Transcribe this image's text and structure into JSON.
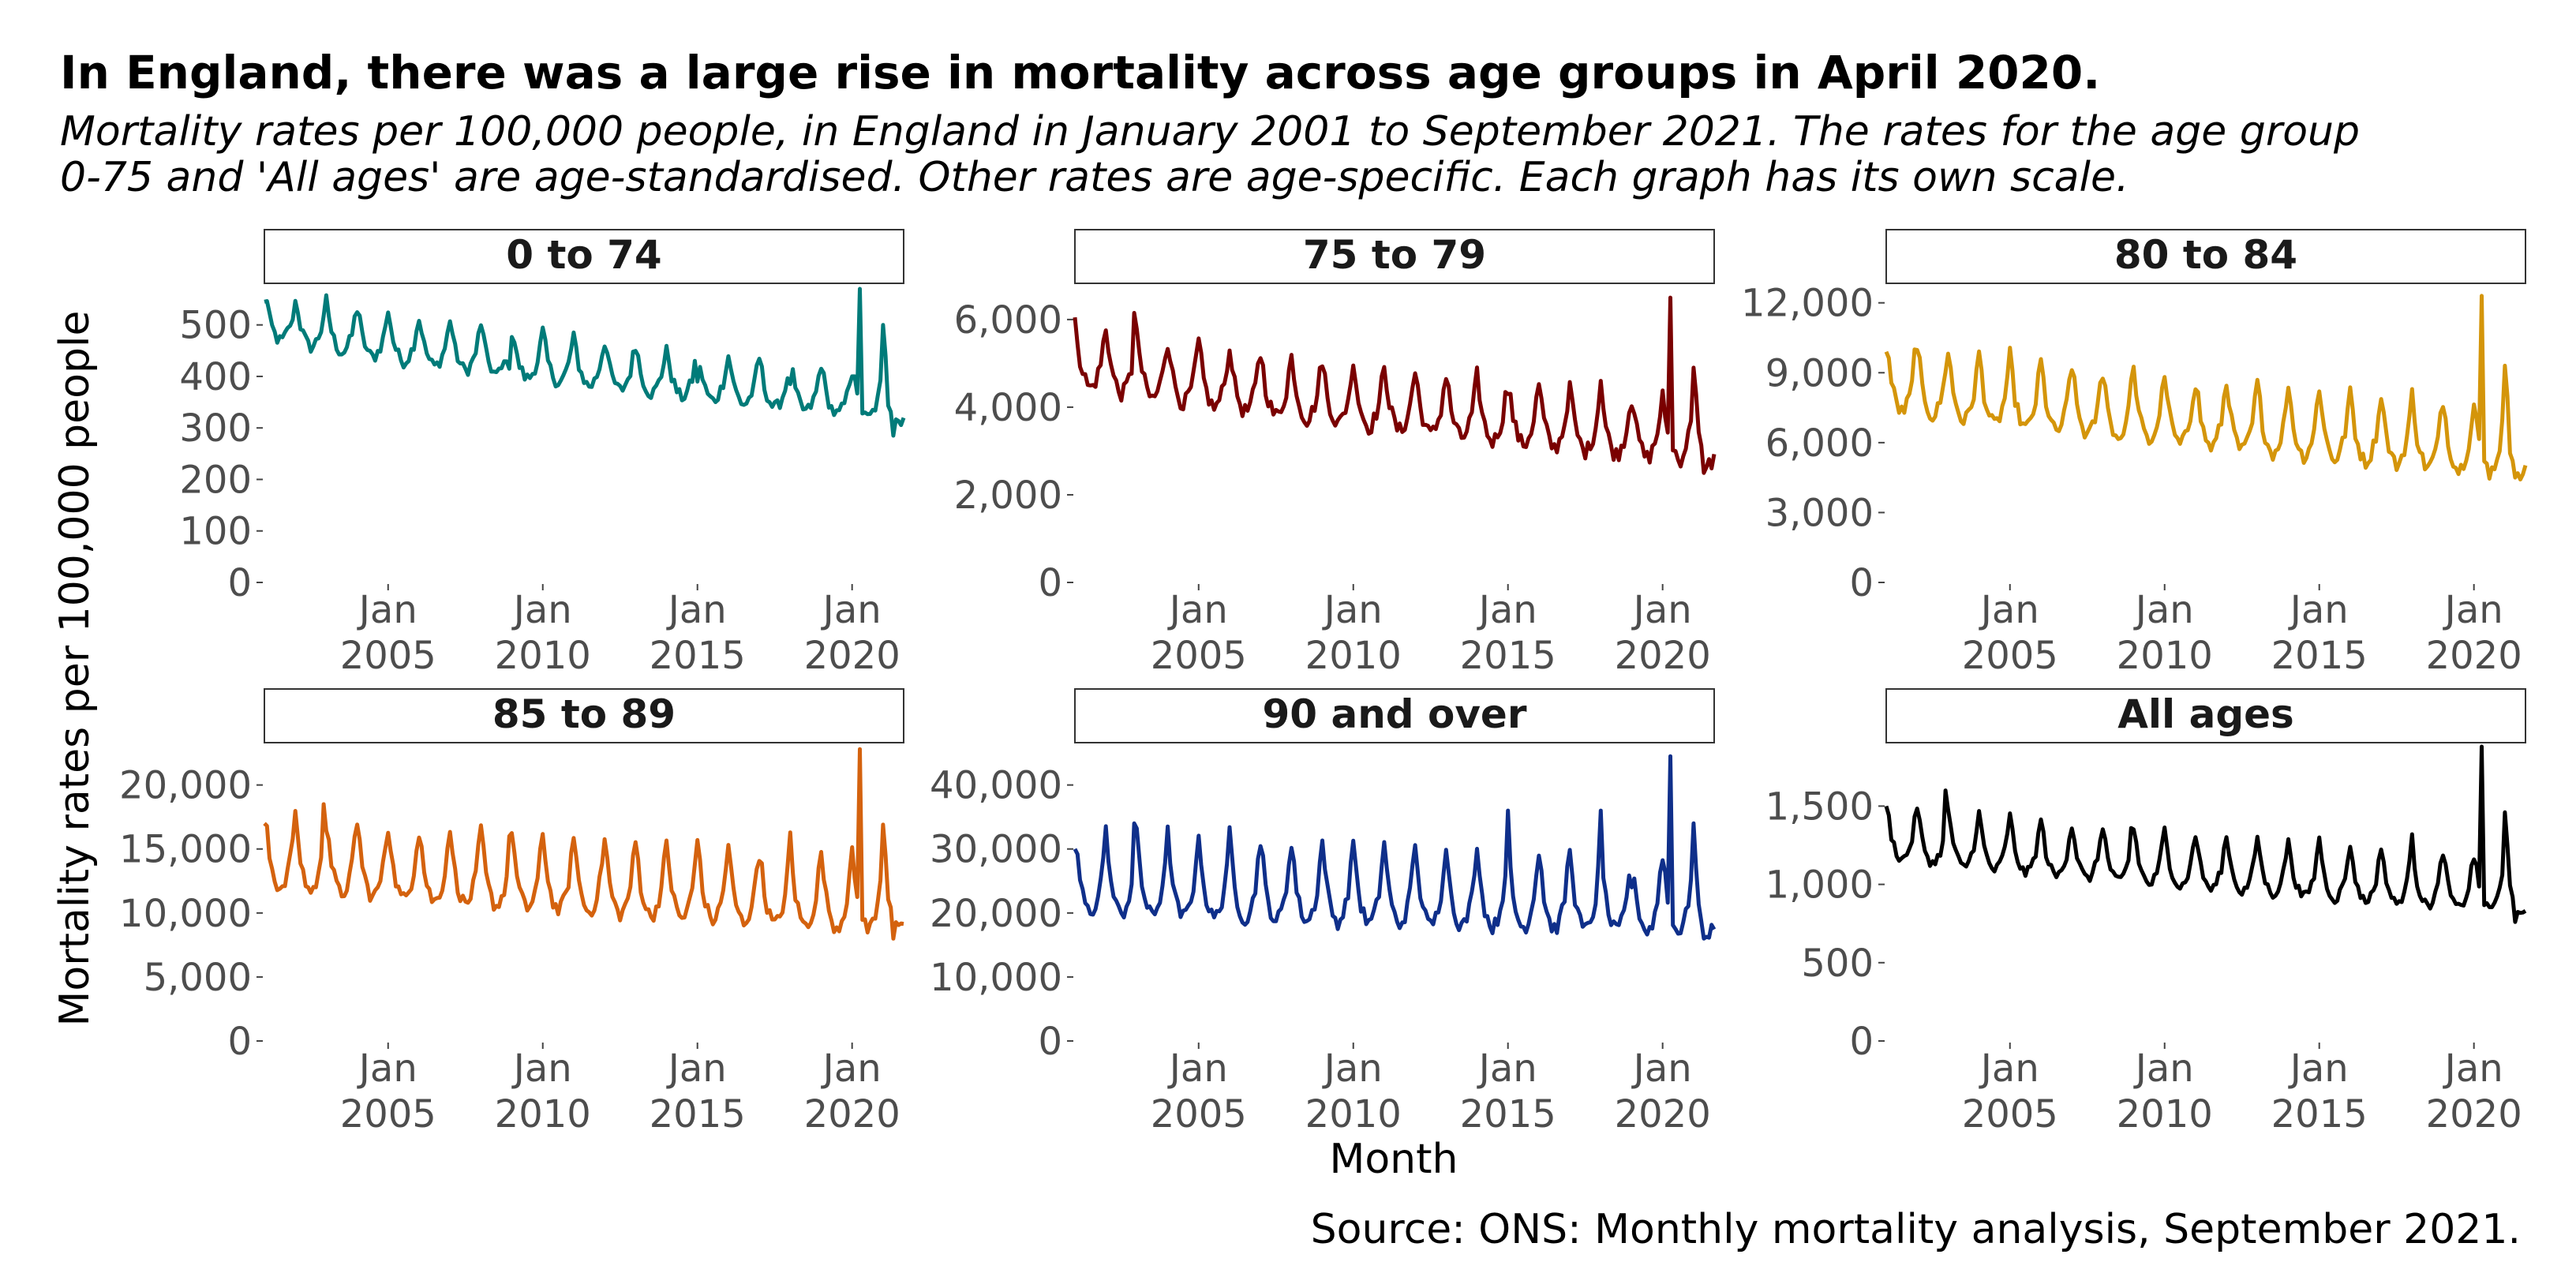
{
  "title": "In England, there was a large rise in mortality across age groups in April 2020.",
  "subtitle": "Mortality rates per 100,000 people, in England in January 2001 to September 2021. The rates for the age group\n0-75 and 'All ages' are age-standardised. Other rates are age-specific. Each graph has its own scale.",
  "caption": "Source: ONS: Monthly mortality analysis, September 2021.",
  "chart_data": {
    "type": "line",
    "xlabel": "Month",
    "ylabel": "Mortality rates per 100,000 people",
    "x_range": [
      "2001-01",
      "2021-09"
    ],
    "x_ticks": [
      {
        "date": "2005-01",
        "label_line1": "Jan",
        "label_line2": "2005"
      },
      {
        "date": "2010-01",
        "label_line1": "Jan",
        "label_line2": "2010"
      },
      {
        "date": "2015-01",
        "label_line1": "Jan",
        "label_line2": "2015"
      },
      {
        "date": "2020-01",
        "label_line1": "Jan",
        "label_line2": "2020"
      }
    ],
    "grid": false,
    "panels": [
      {
        "name": "0 to 74",
        "color": "#007b79",
        "ylim": [
          0,
          570
        ],
        "y_ticks": [
          {
            "v": 0,
            "label": "0"
          },
          {
            "v": 100,
            "label": "100"
          },
          {
            "v": 200,
            "label": "200"
          },
          {
            "v": 300,
            "label": "300"
          },
          {
            "v": 400,
            "label": "400"
          },
          {
            "v": 500,
            "label": "500"
          }
        ],
        "start": 500,
        "end": 335,
        "winter_peak": 60,
        "summer_dip": 25,
        "noise": 12,
        "spikes": [
          {
            "date": "2001-01",
            "value": 545
          },
          {
            "date": "2001-12",
            "value": 510
          },
          {
            "date": "2008-12",
            "value": 415
          },
          {
            "date": "2015-01",
            "value": 390
          },
          {
            "date": "2018-01",
            "value": 385
          },
          {
            "date": "2020-04",
            "value": 580
          },
          {
            "date": "2020-06",
            "value": 330
          },
          {
            "date": "2021-01",
            "value": 500
          },
          {
            "date": "2021-02",
            "value": 440
          },
          {
            "date": "2021-05",
            "value": 285
          }
        ]
      },
      {
        "name": "75 to 79",
        "color": "#7a0000",
        "ylim": [
          0,
          6700
        ],
        "y_ticks": [
          {
            "v": 0,
            "label": "0"
          },
          {
            "v": 2000,
            "label": "2,000"
          },
          {
            "v": 4000,
            "label": "4,000"
          },
          {
            "v": 6000,
            "label": "6,000"
          }
        ],
        "start": 4900,
        "end": 3050,
        "winter_peak": 900,
        "summer_dip": 400,
        "noise": 180,
        "spikes": [
          {
            "date": "2001-01",
            "value": 6050
          },
          {
            "date": "2001-12",
            "value": 5500
          },
          {
            "date": "2002-12",
            "value": 6150
          },
          {
            "date": "2008-12",
            "value": 4900
          },
          {
            "date": "2015-01",
            "value": 4300
          },
          {
            "date": "2018-01",
            "value": 4600
          },
          {
            "date": "2020-04",
            "value": 6500
          },
          {
            "date": "2020-06",
            "value": 3000
          },
          {
            "date": "2021-01",
            "value": 4900
          },
          {
            "date": "2021-02",
            "value": 4300
          },
          {
            "date": "2021-05",
            "value": 2500
          }
        ]
      },
      {
        "name": "80 to 84",
        "color": "#d4950a",
        "ylim": [
          0,
          12600
        ],
        "y_ticks": [
          {
            "v": 0,
            "label": "0"
          },
          {
            "v": 3000,
            "label": "3,000"
          },
          {
            "v": 6000,
            "label": "6,000"
          },
          {
            "v": 9000,
            "label": "9,000"
          },
          {
            "v": 12000,
            "label": "12,000"
          }
        ],
        "start": 8200,
        "end": 5300,
        "winter_peak": 1900,
        "summer_dip": 800,
        "noise": 300,
        "spikes": [
          {
            "date": "2001-01",
            "value": 9900
          },
          {
            "date": "2001-12",
            "value": 10000
          },
          {
            "date": "2008-12",
            "value": 8700
          },
          {
            "date": "2015-01",
            "value": 8200
          },
          {
            "date": "2018-01",
            "value": 8300
          },
          {
            "date": "2020-04",
            "value": 12300
          },
          {
            "date": "2020-06",
            "value": 5100
          },
          {
            "date": "2021-01",
            "value": 9300
          },
          {
            "date": "2021-02",
            "value": 8000
          },
          {
            "date": "2021-05",
            "value": 4500
          }
        ]
      },
      {
        "name": "85 to 89",
        "color": "#d4620e",
        "ylim": [
          0,
          23000
        ],
        "y_ticks": [
          {
            "v": 0,
            "label": "0"
          },
          {
            "v": 5000,
            "label": "5,000"
          },
          {
            "v": 10000,
            "label": "10,000"
          },
          {
            "v": 15000,
            "label": "15,000"
          },
          {
            "v": 20000,
            "label": "20,000"
          }
        ],
        "start": 13500,
        "end": 9900,
        "winter_peak": 3800,
        "summer_dip": 1500,
        "noise": 550,
        "spikes": [
          {
            "date": "2001-01",
            "value": 17000
          },
          {
            "date": "2002-12",
            "value": 18500
          },
          {
            "date": "2008-12",
            "value": 16000
          },
          {
            "date": "2015-01",
            "value": 15700
          },
          {
            "date": "2018-01",
            "value": 16300
          },
          {
            "date": "2020-04",
            "value": 22800
          },
          {
            "date": "2020-06",
            "value": 9500
          },
          {
            "date": "2021-01",
            "value": 16900
          },
          {
            "date": "2021-02",
            "value": 14500
          },
          {
            "date": "2021-05",
            "value": 8000
          }
        ]
      },
      {
        "name": "90 and over",
        "color": "#0f2f8a",
        "ylim": [
          0,
          46000
        ],
        "y_ticks": [
          {
            "v": 0,
            "label": "0"
          },
          {
            "v": 10000,
            "label": "10,000"
          },
          {
            "v": 20000,
            "label": "20,000"
          },
          {
            "v": 30000,
            "label": "30,000"
          },
          {
            "v": 40000,
            "label": "40,000"
          }
        ],
        "start": 23000,
        "end": 19500,
        "winter_peak": 8500,
        "summer_dip": 3000,
        "noise": 1100,
        "spikes": [
          {
            "date": "2001-01",
            "value": 30000
          },
          {
            "date": "2002-12",
            "value": 34000
          },
          {
            "date": "2015-01",
            "value": 36000
          },
          {
            "date": "2018-01",
            "value": 36000
          },
          {
            "date": "2019-01",
            "value": 24000
          },
          {
            "date": "2020-04",
            "value": 44500
          },
          {
            "date": "2020-06",
            "value": 17500
          },
          {
            "date": "2021-01",
            "value": 34000
          },
          {
            "date": "2021-02",
            "value": 27000
          },
          {
            "date": "2021-05",
            "value": 16000
          }
        ]
      },
      {
        "name": "All ages",
        "color": "#000000",
        "ylim": [
          0,
          1880
        ],
        "y_ticks": [
          {
            "v": 0,
            "label": "0"
          },
          {
            "v": 500,
            "label": "500"
          },
          {
            "v": 1000,
            "label": "1,000"
          },
          {
            "v": 1500,
            "label": "1,500"
          }
        ],
        "start": 1260,
        "end": 900,
        "winter_peak": 230,
        "summer_dip": 90,
        "noise": 30,
        "spikes": [
          {
            "date": "2001-01",
            "value": 1500
          },
          {
            "date": "2002-12",
            "value": 1600
          },
          {
            "date": "2008-12",
            "value": 1360
          },
          {
            "date": "2015-01",
            "value": 1300
          },
          {
            "date": "2018-01",
            "value": 1320
          },
          {
            "date": "2020-04",
            "value": 1880
          },
          {
            "date": "2020-06",
            "value": 880
          },
          {
            "date": "2021-01",
            "value": 1460
          },
          {
            "date": "2021-02",
            "value": 1250
          },
          {
            "date": "2021-05",
            "value": 760
          }
        ]
      }
    ]
  }
}
